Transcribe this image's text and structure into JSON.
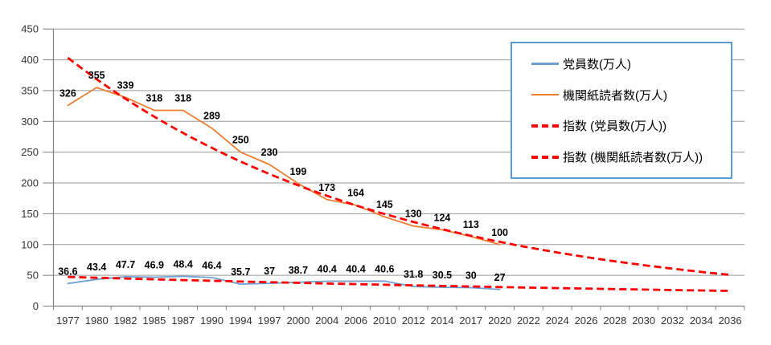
{
  "chart_data": {
    "type": "line",
    "title": "",
    "categories": [
      "1977",
      "1980",
      "1982",
      "1985",
      "1987",
      "1990",
      "1994",
      "1997",
      "2000",
      "2004",
      "2006",
      "2010",
      "2012",
      "2014",
      "2017",
      "2020",
      "2022",
      "2024",
      "2026",
      "2028",
      "2030",
      "2032",
      "2034",
      "2036"
    ],
    "series": [
      {
        "name": "党員数(万人)",
        "color": "#6d9fd3",
        "line_style": "solid",
        "last_data_category": "2020",
        "values": [
          36.6,
          43.4,
          47.7,
          46.9,
          48.4,
          46.4,
          35.7,
          37,
          38.7,
          40.4,
          40.4,
          40.6,
          31.8,
          30.5,
          30,
          27
        ]
      },
      {
        "name": "機関紙読者数(万人)",
        "color": "#ed7d31",
        "line_style": "solid",
        "last_data_category": "2020",
        "values": [
          326,
          355,
          339,
          318,
          318,
          289,
          250,
          230,
          199,
          173,
          164,
          145,
          130,
          124,
          113,
          100
        ]
      }
    ],
    "trendlines": [
      {
        "name": "指数 (党員数(万人))",
        "fit": "exponential",
        "series_index": 0,
        "color": "#ff0000",
        "line_style": "dashed",
        "extends_to_category": "2036"
      },
      {
        "name": "指数 (機関紙読者数(万人))",
        "fit": "exponential",
        "series_index": 1,
        "color": "#ff0000",
        "line_style": "dashed",
        "extends_to_category": "2036"
      }
    ],
    "y_axis": {
      "min": 0,
      "max": 450,
      "step": 50,
      "tick_labels": [
        "0",
        "50",
        "100",
        "150",
        "200",
        "250",
        "300",
        "350",
        "400",
        "450"
      ]
    },
    "x_axis": {
      "tick_labels": [
        "1977",
        "1980",
        "1982",
        "1985",
        "1987",
        "1990",
        "1994",
        "1997",
        "2000",
        "2004",
        "2006",
        "2010",
        "2012",
        "2014",
        "2017",
        "2020",
        "2022",
        "2024",
        "2026",
        "2028",
        "2030",
        "2032",
        "2034",
        "2036"
      ]
    },
    "grid": true,
    "data_labels_position": "above",
    "legend": {
      "position": "upper-right-overlay",
      "border_color": "#5b9bd5"
    }
  },
  "colors": {
    "gridline": "#999999",
    "axis": "#808080",
    "tick_text": "#333333",
    "data_label_text": "#000000",
    "background": "#ffffff"
  }
}
